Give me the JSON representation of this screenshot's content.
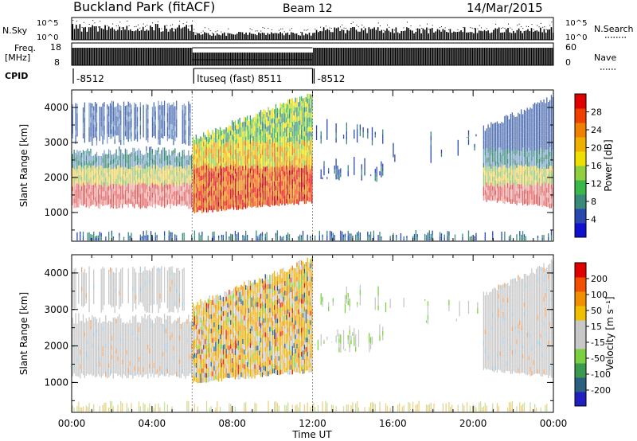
{
  "header": {
    "station": "Buckland Park (fitACF)",
    "beam": "Beam 12",
    "date": "14/Mar/2015"
  },
  "status_panel": {
    "nsky_label": "N.Sky",
    "nsearch_label": "N.Search",
    "nsky_ticks": [
      "10^5",
      "10^0"
    ],
    "nsearch_ticks": [
      "10^5",
      "10^0"
    ],
    "freq_label": "Freq.",
    "freq_unit": "[MHz]",
    "freq_ticks": [
      "18",
      "8"
    ],
    "nave_label": "Nave",
    "nave_ticks": [
      "60",
      "0"
    ],
    "cpid_label": "CPID",
    "cpid_segments": [
      {
        "label": "-8512",
        "start_hour": 0,
        "end_hour": 6
      },
      {
        "label": "ltuseq (fast) 8511",
        "start_hour": 6,
        "end_hour": 12
      },
      {
        "label": "-8512",
        "start_hour": 12,
        "end_hour": 24
      }
    ]
  },
  "x_axis": {
    "label": "Time UT",
    "ticks": [
      "00:00",
      "04:00",
      "08:00",
      "12:00",
      "16:00",
      "20:00",
      "00:00"
    ],
    "range_hours": [
      0,
      24
    ]
  },
  "chart_data": [
    {
      "type": "heatmap",
      "name": "power",
      "ylabel": "Slant Range [km]",
      "yticks": [
        1000,
        2000,
        3000,
        4000
      ],
      "ylim": [
        180,
        4500
      ],
      "xlim": [
        0,
        24
      ],
      "colorbar": {
        "label": "Power [dB]",
        "ticks": [
          4,
          8,
          12,
          16,
          20,
          24,
          28
        ],
        "colors": [
          "#1010d0",
          "#2848b0",
          "#3a8a7a",
          "#3cb84a",
          "#90d040",
          "#f0e000",
          "#f0b000",
          "#f08000",
          "#f04000",
          "#e00000"
        ]
      }
    },
    {
      "type": "heatmap",
      "name": "velocity",
      "ylabel": "Slant Range [km]",
      "yticks": [
        1000,
        2000,
        3000,
        4000
      ],
      "ylim": [
        180,
        4500
      ],
      "xlim": [
        0,
        24
      ],
      "colorbar": {
        "label": "Velocity [m s⁻¹]",
        "ticks": [
          200,
          100,
          50,
          15,
          -15,
          -50,
          -100,
          -200
        ],
        "colors": [
          "#2020c0",
          "#2a6080",
          "#3c9a50",
          "#7ad040",
          "#c8c8c8",
          "#c8c8c8",
          "#f0c000",
          "#f09000",
          "#f05000",
          "#e00000"
        ]
      }
    }
  ]
}
